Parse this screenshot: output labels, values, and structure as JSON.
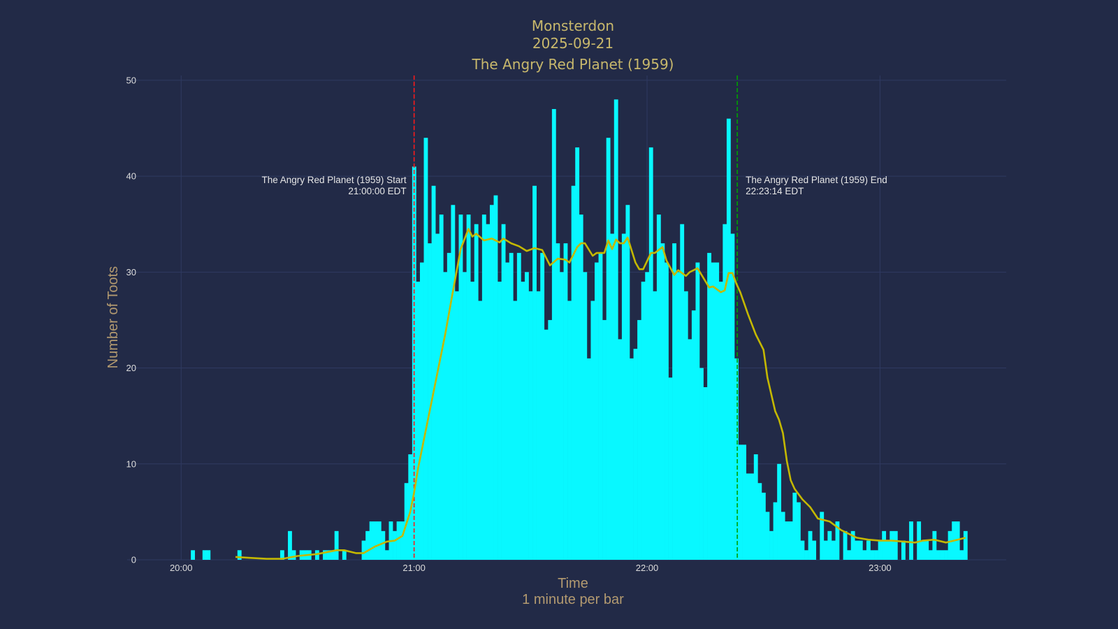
{
  "chart_data": {
    "type": "bar",
    "title": [
      "Monsterdon",
      "2025-09-21",
      "The Angry Red Planet (1959)"
    ],
    "xlabel": "Time",
    "xlabel_sub": "1 minute per bar",
    "ylabel": "Number of Toots",
    "xlim": [
      "19:46:06",
      "23:32:30"
    ],
    "ylim": [
      0,
      50.5
    ],
    "x_ticks": [
      "20:00",
      "21:00",
      "22:00",
      "23:00"
    ],
    "y_ticks": [
      0,
      10,
      20,
      30,
      40,
      50
    ],
    "grid": true,
    "colors": {
      "background": "#222a47",
      "grid": "#2f3a61",
      "bars": "#08f8ff",
      "trend": "#c4b800",
      "title": "#c8b86c",
      "start_line": "#ff1a1a",
      "end_line": "#00a000"
    },
    "bars": [
      [
        "20:03",
        1
      ],
      [
        "20:06",
        1
      ],
      [
        "20:07",
        1
      ],
      [
        "20:15",
        1
      ],
      [
        "20:26",
        1
      ],
      [
        "20:28",
        3
      ],
      [
        "20:29",
        1
      ],
      [
        "20:31",
        1
      ],
      [
        "20:32",
        1
      ],
      [
        "20:33",
        1
      ],
      [
        "20:35",
        1
      ],
      [
        "20:37",
        1
      ],
      [
        "20:38",
        1
      ],
      [
        "20:39",
        1
      ],
      [
        "20:40",
        3
      ],
      [
        "20:42",
        1
      ],
      [
        "20:47",
        2
      ],
      [
        "20:48",
        3
      ],
      [
        "20:49",
        4
      ],
      [
        "20:50",
        4
      ],
      [
        "20:51",
        4
      ],
      [
        "20:52",
        3
      ],
      [
        "20:53",
        1
      ],
      [
        "20:54",
        4
      ],
      [
        "20:55",
        3
      ],
      [
        "20:56",
        4
      ],
      [
        "20:57",
        4
      ],
      [
        "20:58",
        8
      ],
      [
        "20:59",
        11
      ],
      [
        "21:00",
        41
      ],
      [
        "21:01",
        29
      ],
      [
        "21:02",
        31
      ],
      [
        "21:03",
        44
      ],
      [
        "21:04",
        33
      ],
      [
        "21:05",
        39
      ],
      [
        "21:06",
        34
      ],
      [
        "21:07",
        36
      ],
      [
        "21:08",
        30
      ],
      [
        "21:09",
        32
      ],
      [
        "21:10",
        37
      ],
      [
        "21:11",
        28
      ],
      [
        "21:12",
        36
      ],
      [
        "21:13",
        30
      ],
      [
        "21:14",
        36
      ],
      [
        "21:15",
        29
      ],
      [
        "21:16",
        35
      ],
      [
        "21:17",
        27
      ],
      [
        "21:18",
        36
      ],
      [
        "21:19",
        35
      ],
      [
        "21:20",
        37
      ],
      [
        "21:21",
        38
      ],
      [
        "21:22",
        29
      ],
      [
        "21:23",
        35
      ],
      [
        "21:24",
        31
      ],
      [
        "21:25",
        32
      ],
      [
        "21:26",
        27
      ],
      [
        "21:27",
        32
      ],
      [
        "21:28",
        29
      ],
      [
        "21:29",
        30
      ],
      [
        "21:30",
        28
      ],
      [
        "21:31",
        39
      ],
      [
        "21:32",
        28
      ],
      [
        "21:33",
        32
      ],
      [
        "21:34",
        24
      ],
      [
        "21:35",
        25
      ],
      [
        "21:36",
        47
      ],
      [
        "21:37",
        33
      ],
      [
        "21:38",
        30
      ],
      [
        "21:39",
        33
      ],
      [
        "21:40",
        27
      ],
      [
        "21:41",
        39
      ],
      [
        "21:42",
        43
      ],
      [
        "21:43",
        36
      ],
      [
        "21:44",
        30
      ],
      [
        "21:45",
        21
      ],
      [
        "21:46",
        27
      ],
      [
        "21:47",
        31
      ],
      [
        "21:48",
        32
      ],
      [
        "21:49",
        25
      ],
      [
        "21:50",
        44
      ],
      [
        "21:51",
        34
      ],
      [
        "21:52",
        48
      ],
      [
        "21:53",
        23
      ],
      [
        "21:54",
        34
      ],
      [
        "21:55",
        37
      ],
      [
        "21:56",
        21
      ],
      [
        "21:57",
        22
      ],
      [
        "21:58",
        25
      ],
      [
        "21:59",
        29
      ],
      [
        "22:00",
        30
      ],
      [
        "22:01",
        43
      ],
      [
        "22:02",
        28
      ],
      [
        "22:03",
        36
      ],
      [
        "22:04",
        33
      ],
      [
        "22:05",
        31
      ],
      [
        "22:06",
        19
      ],
      [
        "22:07",
        33
      ],
      [
        "22:08",
        30
      ],
      [
        "22:09",
        35
      ],
      [
        "22:10",
        28
      ],
      [
        "22:11",
        23
      ],
      [
        "22:12",
        26
      ],
      [
        "22:13",
        31
      ],
      [
        "22:14",
        20
      ],
      [
        "22:15",
        18
      ],
      [
        "22:16",
        32
      ],
      [
        "22:17",
        31
      ],
      [
        "22:18",
        31
      ],
      [
        "22:19",
        29
      ],
      [
        "22:20",
        35
      ],
      [
        "22:21",
        46
      ],
      [
        "22:22",
        34
      ],
      [
        "22:23",
        21
      ],
      [
        "22:24",
        12
      ],
      [
        "22:25",
        12
      ],
      [
        "22:26",
        9
      ],
      [
        "22:27",
        9
      ],
      [
        "22:28",
        11
      ],
      [
        "22:29",
        8
      ],
      [
        "22:30",
        7
      ],
      [
        "22:31",
        5
      ],
      [
        "22:32",
        3
      ],
      [
        "22:33",
        6
      ],
      [
        "22:34",
        10
      ],
      [
        "22:35",
        5
      ],
      [
        "22:36",
        4
      ],
      [
        "22:37",
        4
      ],
      [
        "22:38",
        7
      ],
      [
        "22:39",
        6
      ],
      [
        "22:40",
        2
      ],
      [
        "22:41",
        1
      ],
      [
        "22:42",
        3
      ],
      [
        "22:43",
        2
      ],
      [
        "22:45",
        5
      ],
      [
        "22:46",
        2
      ],
      [
        "22:47",
        3
      ],
      [
        "22:48",
        2
      ],
      [
        "22:49",
        4
      ],
      [
        "22:51",
        3
      ],
      [
        "22:52",
        1
      ],
      [
        "22:53",
        3
      ],
      [
        "22:54",
        2
      ],
      [
        "22:55",
        2
      ],
      [
        "22:56",
        1
      ],
      [
        "22:57",
        2
      ],
      [
        "22:58",
        1
      ],
      [
        "22:59",
        1
      ],
      [
        "23:00",
        2
      ],
      [
        "23:01",
        3
      ],
      [
        "23:02",
        2
      ],
      [
        "23:03",
        3
      ],
      [
        "23:04",
        3
      ],
      [
        "23:06",
        2
      ],
      [
        "23:08",
        4
      ],
      [
        "23:10",
        4
      ],
      [
        "23:11",
        2
      ],
      [
        "23:12",
        2
      ],
      [
        "23:13",
        1
      ],
      [
        "23:14",
        3
      ],
      [
        "23:15",
        1
      ],
      [
        "23:16",
        1
      ],
      [
        "23:17",
        1
      ],
      [
        "23:18",
        3
      ],
      [
        "23:19",
        4
      ],
      [
        "23:20",
        4
      ],
      [
        "23:21",
        1
      ],
      [
        "23:22",
        3
      ]
    ],
    "trend": [
      [
        "20:14",
        0.3
      ],
      [
        "20:18",
        0.2
      ],
      [
        "20:22",
        0.1
      ],
      [
        "20:26",
        0.1
      ],
      [
        "20:30",
        0.4
      ],
      [
        "20:35",
        0.6
      ],
      [
        "20:40",
        1.0
      ],
      [
        "20:42",
        1.0
      ],
      [
        "20:45",
        0.7
      ],
      [
        "20:47",
        0.7
      ],
      [
        "20:50",
        1.4
      ],
      [
        "20:53",
        1.9
      ],
      [
        "20:55",
        2.0
      ],
      [
        "20:57",
        2.5
      ],
      [
        "20:59",
        5
      ],
      [
        "21:00",
        7
      ],
      [
        "21:01",
        9.5
      ],
      [
        "21:04",
        15.5
      ],
      [
        "21:06",
        19.5
      ],
      [
        "21:08",
        23.5
      ],
      [
        "21:10",
        28
      ],
      [
        "21:12",
        32.4
      ],
      [
        "21:14",
        34.5
      ],
      [
        "21:15",
        33.7
      ],
      [
        "21:16",
        34
      ],
      [
        "21:18",
        33.3
      ],
      [
        "21:20",
        33.5
      ],
      [
        "21:22",
        33.1
      ],
      [
        "21:23",
        33.5
      ],
      [
        "21:25",
        33.0
      ],
      [
        "21:27",
        32.7
      ],
      [
        "21:29",
        32.2
      ],
      [
        "21:31",
        32.5
      ],
      [
        "21:33",
        32.3
      ],
      [
        "21:35",
        30.7
      ],
      [
        "21:37",
        31.4
      ],
      [
        "21:39",
        31.3
      ],
      [
        "21:40",
        31.0
      ],
      [
        "21:42",
        32.6
      ],
      [
        "21:43",
        33
      ],
      [
        "21:44",
        33
      ],
      [
        "21:46",
        31.7
      ],
      [
        "21:47",
        32
      ],
      [
        "21:49",
        32
      ],
      [
        "21:50",
        33.3
      ],
      [
        "21:51",
        32.4
      ],
      [
        "21:52",
        33.4
      ],
      [
        "21:53",
        33
      ],
      [
        "21:54",
        33
      ],
      [
        "21:55",
        33.6
      ],
      [
        "21:57",
        31.0
      ],
      [
        "21:58",
        30.3
      ],
      [
        "21:59",
        30.3
      ],
      [
        "22:01",
        32
      ],
      [
        "22:02",
        32
      ],
      [
        "22:04",
        32.6
      ],
      [
        "22:05",
        31.2
      ],
      [
        "22:07",
        29.7
      ],
      [
        "22:08",
        30.2
      ],
      [
        "22:10",
        29.6
      ],
      [
        "22:11",
        30
      ],
      [
        "22:13",
        30.4
      ],
      [
        "22:16",
        28.4
      ],
      [
        "22:17",
        28.5
      ],
      [
        "22:19",
        27.9
      ],
      [
        "22:20",
        28.1
      ],
      [
        "22:21",
        29.9
      ],
      [
        "22:22",
        29.9
      ],
      [
        "22:23",
        28.8
      ],
      [
        "22:24",
        27.9
      ],
      [
        "22:26",
        25.6
      ],
      [
        "22:28",
        23.5
      ],
      [
        "22:30",
        21.9
      ],
      [
        "22:31",
        19
      ],
      [
        "22:33",
        15.5
      ],
      [
        "22:34",
        14.6
      ],
      [
        "22:35",
        13.2
      ],
      [
        "22:36",
        10.3
      ],
      [
        "22:37",
        8.3
      ],
      [
        "22:38",
        7.4
      ],
      [
        "22:40",
        6.3
      ],
      [
        "22:42",
        5.5
      ],
      [
        "22:44",
        4.3
      ],
      [
        "22:45",
        4.2
      ],
      [
        "22:47",
        4.0
      ],
      [
        "22:50",
        3.1
      ],
      [
        "22:51",
        2.9
      ],
      [
        "22:54",
        2.3
      ],
      [
        "22:57",
        2.1
      ],
      [
        "23:00",
        2.0
      ],
      [
        "23:03",
        2.0
      ],
      [
        "23:06",
        1.9
      ],
      [
        "23:09",
        1.8
      ],
      [
        "23:11",
        2.0
      ],
      [
        "23:14",
        2.1
      ],
      [
        "23:17",
        1.8
      ],
      [
        "23:20",
        2.1
      ],
      [
        "23:22",
        2.3
      ]
    ],
    "annotations": [
      {
        "time": "21:00:00",
        "line": "start",
        "text": "The Angry Red Planet (1959) Start",
        "subtext": "21:00:00 EDT"
      },
      {
        "time": "22:23:14",
        "line": "end",
        "text": "The Angry Red Planet (1959) End",
        "subtext": "22:23:14 EDT"
      }
    ]
  }
}
